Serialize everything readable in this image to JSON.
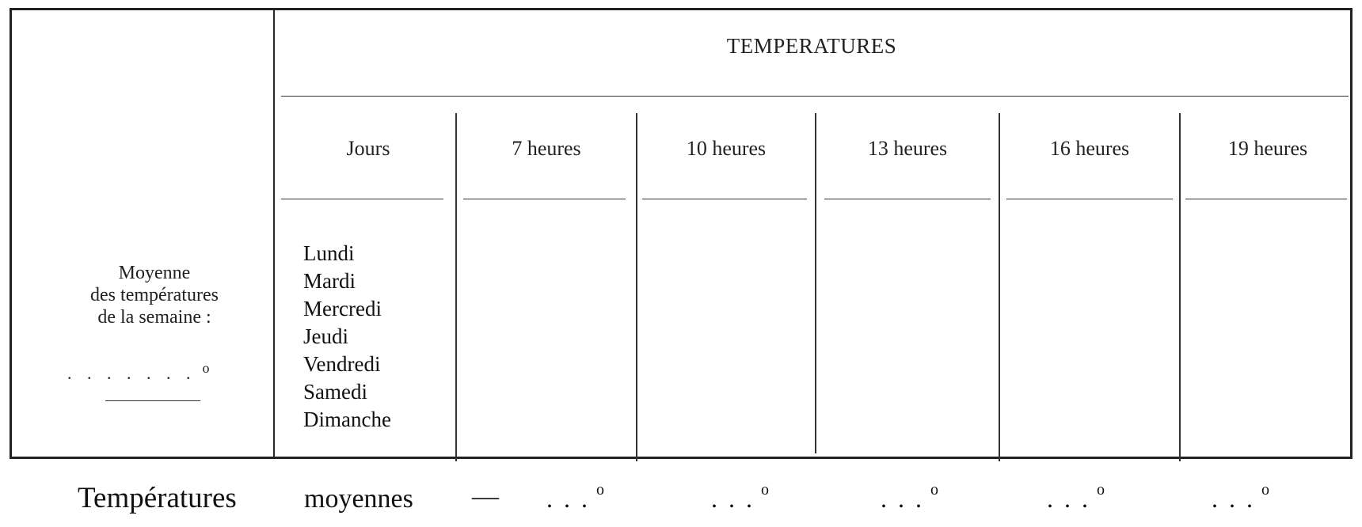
{
  "table": {
    "title": "TEMPERATURES",
    "columns": {
      "jours": "Jours",
      "h7": "7 heures",
      "h10": "10 heures",
      "h13": "13 heures",
      "h16": "16 heures",
      "h19": "19 heures"
    },
    "days": [
      "Lundi",
      "Mardi",
      "Mercredi",
      "Jeudi",
      "Vendredi",
      "Samedi",
      "Dimanche"
    ],
    "weekly_average": {
      "line1": "Moyenne",
      "line2": "des températures",
      "line3": "de la semaine :",
      "dots": ". . . . . . .",
      "degree": "o"
    }
  },
  "footer": {
    "label_main": "Températures",
    "label_secondary": "moyennes",
    "dash": "—",
    "slots": [
      {
        "dots": ". . .",
        "degree": "o"
      },
      {
        "dots": ". . .",
        "degree": "o"
      },
      {
        "dots": ". . .",
        "degree": "o"
      },
      {
        "dots": ". . .",
        "degree": "o"
      },
      {
        "dots": ". . .",
        "degree": "o"
      }
    ]
  }
}
